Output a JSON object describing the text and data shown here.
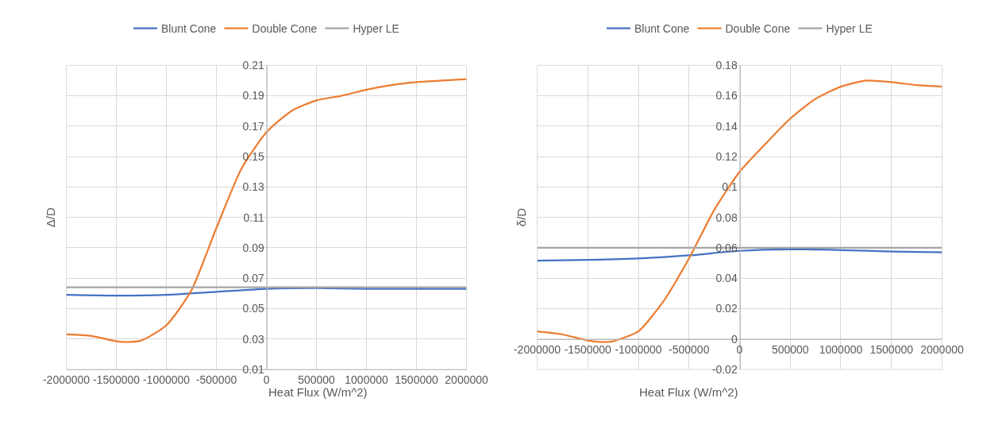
{
  "chart_data": [
    {
      "type": "line",
      "xlabel": "Heat Flux (W/m^2)",
      "ylabel": "Δ/D",
      "xlim": [
        -2000000,
        2000000
      ],
      "xticks": [
        -2000000,
        -1500000,
        -1000000,
        -500000,
        0,
        500000,
        1000000,
        1500000,
        2000000
      ],
      "ylim": [
        0.01,
        0.21
      ],
      "yticks": [
        0.01,
        0.03,
        0.05,
        0.07,
        0.09,
        0.11,
        0.13,
        0.15,
        0.17,
        0.19,
        0.21
      ],
      "grid": true,
      "legend": "top",
      "marker": "none",
      "line_style": "solid",
      "series": [
        {
          "name": "Blunt Cone",
          "color": "#4472c4",
          "x": [
            -2000000,
            -1500000,
            -1000000,
            -500000,
            0,
            500000,
            1000000,
            1500000,
            2000000
          ],
          "values": [
            0.059,
            0.0585,
            0.059,
            0.061,
            0.063,
            0.0635,
            0.063,
            0.063,
            0.063
          ]
        },
        {
          "name": "Double Cone",
          "color": "#ed7d31",
          "x": [
            -2000000,
            -1750000,
            -1500000,
            -1400000,
            -1250000,
            -1000000,
            -750000,
            -500000,
            -250000,
            0,
            250000,
            500000,
            750000,
            1000000,
            1250000,
            1500000,
            1750000,
            2000000
          ],
          "values": [
            0.033,
            0.032,
            0.0285,
            0.028,
            0.029,
            0.039,
            0.062,
            0.103,
            0.142,
            0.166,
            0.18,
            0.187,
            0.19,
            0.194,
            0.197,
            0.199,
            0.2,
            0.201
          ]
        },
        {
          "name": "Hyper LE",
          "color": "#a5a5a5",
          "x": [
            -2000000,
            2000000
          ],
          "values": [
            0.064,
            0.064
          ]
        }
      ]
    },
    {
      "type": "line",
      "xlabel": "Heat Flux (W/m^2)",
      "ylabel": "δ/D",
      "xlim": [
        -2000000,
        2000000
      ],
      "xticks": [
        -2000000,
        -1500000,
        -1000000,
        -500000,
        0,
        500000,
        1000000,
        1500000,
        2000000
      ],
      "ylim": [
        -0.02,
        0.18
      ],
      "yticks": [
        -0.02,
        0,
        0.02,
        0.04,
        0.06,
        0.08,
        0.1,
        0.12,
        0.14,
        0.16,
        0.18
      ],
      "grid": true,
      "legend": "top",
      "marker": "none",
      "line_style": "solid",
      "series": [
        {
          "name": "Blunt Cone",
          "color": "#4472c4",
          "x": [
            -2000000,
            -1500000,
            -1000000,
            -500000,
            0,
            500000,
            1000000,
            1500000,
            2000000
          ],
          "values": [
            0.0515,
            0.052,
            0.053,
            0.055,
            0.058,
            0.059,
            0.0585,
            0.0575,
            0.057
          ]
        },
        {
          "name": "Double Cone",
          "color": "#ed7d31",
          "x": [
            -2000000,
            -1750000,
            -1500000,
            -1350000,
            -1250000,
            -1000000,
            -750000,
            -500000,
            -250000,
            0,
            250000,
            500000,
            750000,
            1000000,
            1250000,
            1500000,
            1750000,
            2000000
          ],
          "values": [
            0.005,
            0.003,
            -0.001,
            -0.002,
            -0.0015,
            0.005,
            0.025,
            0.053,
            0.085,
            0.11,
            0.128,
            0.145,
            0.158,
            0.166,
            0.17,
            0.169,
            0.167,
            0.166
          ]
        },
        {
          "name": "Hyper LE",
          "color": "#a5a5a5",
          "x": [
            -2000000,
            2000000
          ],
          "values": [
            0.06,
            0.06
          ]
        }
      ]
    }
  ]
}
